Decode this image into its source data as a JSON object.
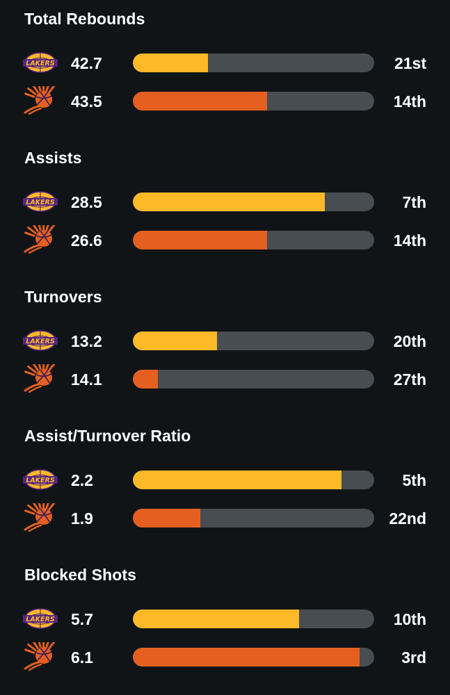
{
  "colors": {
    "background": "#111417",
    "track": "#474d51",
    "lakers": "#fdb927",
    "suns": "#e56020",
    "text": "#ffffff"
  },
  "teams": {
    "lakers": {
      "logo_icon": "lakers-logo-icon",
      "logo_text": "LAKERS"
    },
    "suns": {
      "logo_icon": "suns-logo-icon"
    }
  },
  "sections": [
    {
      "title": "Total Rebounds",
      "rows": [
        {
          "team": "lakers",
          "value": "42.7",
          "rank": "21st",
          "fill_fraction": 0.31
        },
        {
          "team": "suns",
          "value": "43.5",
          "rank": "14th",
          "fill_fraction": 0.555
        }
      ]
    },
    {
      "title": "Assists",
      "rows": [
        {
          "team": "lakers",
          "value": "28.5",
          "rank": "7th",
          "fill_fraction": 0.795
        },
        {
          "team": "suns",
          "value": "26.6",
          "rank": "14th",
          "fill_fraction": 0.555
        }
      ]
    },
    {
      "title": "Turnovers",
      "rows": [
        {
          "team": "lakers",
          "value": "13.2",
          "rank": "20th",
          "fill_fraction": 0.35
        },
        {
          "team": "suns",
          "value": "14.1",
          "rank": "27th",
          "fill_fraction": 0.105
        }
      ]
    },
    {
      "title": "Assist/Turnover Ratio",
      "rows": [
        {
          "team": "lakers",
          "value": "2.2",
          "rank": "5th",
          "fill_fraction": 0.865
        },
        {
          "team": "suns",
          "value": "1.9",
          "rank": "22nd",
          "fill_fraction": 0.28
        }
      ]
    },
    {
      "title": "Blocked Shots",
      "rows": [
        {
          "team": "lakers",
          "value": "5.7",
          "rank": "10th",
          "fill_fraction": 0.69
        },
        {
          "team": "suns",
          "value": "6.1",
          "rank": "3rd",
          "fill_fraction": 0.94
        }
      ]
    }
  ]
}
